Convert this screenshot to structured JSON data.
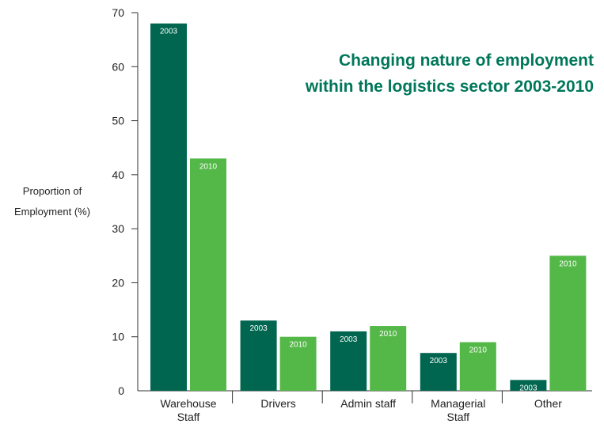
{
  "chart_data": {
    "type": "bar",
    "title_lines": [
      "Changing nature of employment",
      "within the logistics sector 2003-2010"
    ],
    "ylabel_lines": [
      "Proportion of",
      "Employment (%)"
    ],
    "xlabel": "",
    "ylim": [
      0,
      70
    ],
    "yticks": [
      "0",
      "10",
      "20",
      "30",
      "40",
      "50",
      "60",
      "70"
    ],
    "categories": [
      [
        "Warehouse",
        "Staff"
      ],
      [
        "Drivers"
      ],
      [
        "Admin staff"
      ],
      [
        "Managerial",
        "Staff"
      ],
      [
        "Other"
      ]
    ],
    "series": [
      {
        "name": "2003",
        "color": "#00664f",
        "values": [
          68,
          13,
          11,
          7,
          2
        ]
      },
      {
        "name": "2010",
        "color": "#54b848",
        "values": [
          43,
          10,
          12,
          9,
          25
        ]
      }
    ],
    "legend": "none",
    "grid": false,
    "title_color": "#00775a"
  }
}
